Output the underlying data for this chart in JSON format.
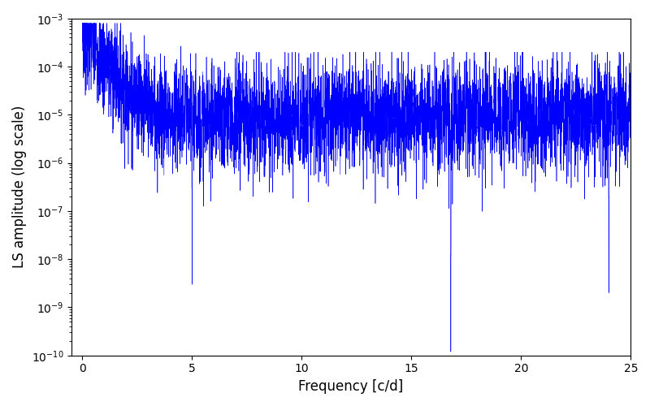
{
  "xlabel": "Frequency [c/d]",
  "ylabel": "LS amplitude (log scale)",
  "xlim": [
    -0.5,
    25
  ],
  "ylim": [
    1e-10,
    0.001
  ],
  "line_color": "blue",
  "background_color": "#ffffff",
  "freq_max": 25.0,
  "num_points": 5000,
  "seed": 7,
  "figsize": [
    8.0,
    5.0
  ],
  "dpi": 100
}
